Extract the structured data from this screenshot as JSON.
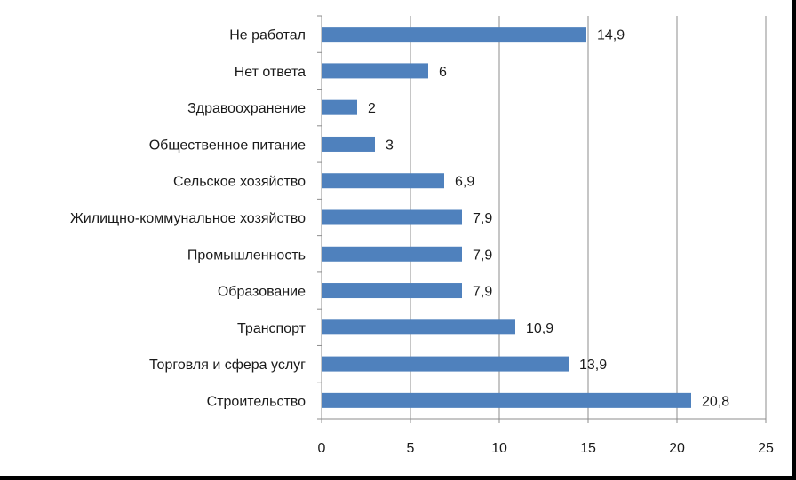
{
  "chart_data": {
    "type": "bar",
    "orientation": "horizontal",
    "categories": [
      "Не работал",
      "Нет ответа",
      "Здравоохранение",
      "Общественное питание",
      "Сельское хозяйство",
      "Жилищно-коммунальное хозяйство",
      "Промышленность",
      "Образование",
      "Транспорт",
      "Торговля и сфера услуг",
      "Строительство"
    ],
    "values": [
      14.9,
      6,
      2,
      3,
      6.9,
      7.9,
      7.9,
      7.9,
      10.9,
      13.9,
      20.8
    ],
    "value_labels": [
      "14,9",
      "6",
      "2",
      "3",
      "6,9",
      "7,9",
      "7,9",
      "7,9",
      "10,9",
      "13,9",
      "20,8"
    ],
    "xlim": [
      0,
      25
    ],
    "xticks": [
      0,
      5,
      10,
      15,
      20,
      25
    ],
    "xtick_labels": [
      "0",
      "5",
      "10",
      "15",
      "20",
      "25"
    ],
    "grid": "vertical",
    "legend": "none",
    "title": "",
    "xlabel": "",
    "ylabel": "",
    "bar_color": "#4f81bd",
    "grid_color": "#8c8c8c",
    "axis_color": "#8c8c8c",
    "text_color": "#1a1a1a"
  }
}
